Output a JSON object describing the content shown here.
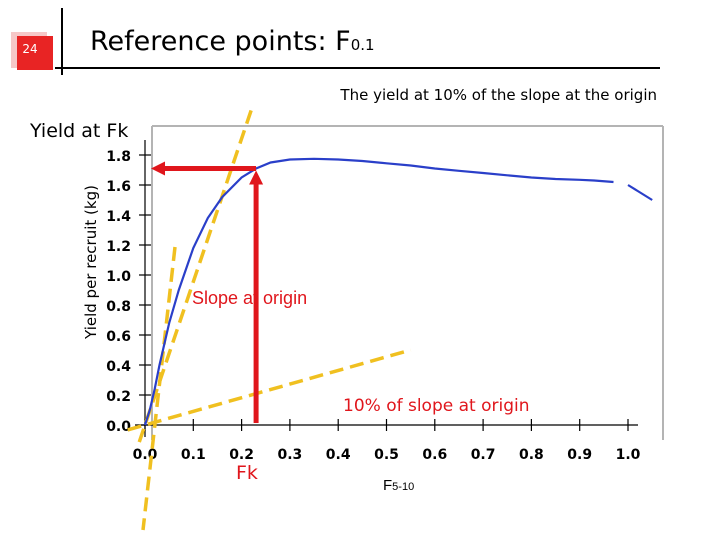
{
  "slide": {
    "number": "24",
    "title_main": "Reference points: F",
    "title_sub": "0.1",
    "subtitle": "The yield at 10% of the slope at the origin"
  },
  "annotations": {
    "yield_at_fk": "Yield at Fk",
    "slope_at_origin": "Slope at origin",
    "ten_percent_slope": "10% of slope at origin",
    "fk_label": "Fk",
    "f510_main": "F",
    "f510_sub": "5-10"
  },
  "colors": {
    "curve": "#2a3fc9",
    "tangent": "#f0c020",
    "arrow": "#e0161c",
    "axis": "#000000",
    "frame": "#b4b4b4",
    "slide_accent": "#e82424"
  },
  "chart_data": {
    "type": "line",
    "title": "",
    "xlabel": "",
    "ylabel": "Yield per recruit (kg)",
    "xlim": [
      0,
      1.0
    ],
    "ylim": [
      0,
      1.8
    ],
    "x_ticks": [
      "0.0",
      "0.1",
      "0.2",
      "0.3",
      "0.4",
      "0.5",
      "0.6",
      "0.7",
      "0.8",
      "0.9",
      "1.0"
    ],
    "y_ticks": [
      "0.0",
      "0.2",
      "0.4",
      "0.6",
      "0.8",
      "1.0",
      "1.2",
      "1.4",
      "1.6",
      "1.8"
    ],
    "grid": false,
    "series": [
      {
        "x": [
          0.0,
          0.01,
          0.02,
          0.03,
          0.05,
          0.07,
          0.1,
          0.13,
          0.16,
          0.2,
          0.23,
          0.26,
          0.3,
          0.35,
          0.4,
          0.45,
          0.5,
          0.55,
          0.6,
          0.65,
          0.7,
          0.75,
          0.8,
          0.85,
          0.9,
          0.93,
          0.97
        ],
        "y": [
          0.0,
          0.1,
          0.24,
          0.4,
          0.68,
          0.9,
          1.18,
          1.38,
          1.52,
          1.65,
          1.71,
          1.75,
          1.77,
          1.775,
          1.77,
          1.76,
          1.745,
          1.73,
          1.71,
          1.695,
          1.68,
          1.665,
          1.65,
          1.64,
          1.635,
          1.63,
          1.62
        ]
      },
      {
        "x": [
          1.0,
          1.02,
          1.05
        ],
        "y": [
          1.6,
          1.56,
          1.5
        ]
      }
    ],
    "reference_lines": [
      {
        "name": "Slope at origin",
        "x": [
          0.0,
          0.22
        ],
        "y": [
          0.0,
          2.1
        ]
      },
      {
        "name": "10% of slope at origin",
        "x": [
          0.0,
          0.55
        ],
        "y": [
          0.0,
          0.5
        ]
      }
    ],
    "fk": {
      "x": 0.23,
      "y": 1.71
    }
  }
}
